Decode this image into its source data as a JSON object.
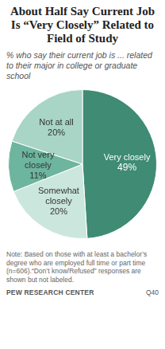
{
  "chart_data": {
    "type": "pie",
    "title": "About Half Say Current Job Is “Very Closely” Related to Field of Study",
    "subtitle": "% who say their current job is ... related to their major in college or graduate school",
    "categories": [
      "Very closely",
      "Somewhat closely",
      "Not very closely",
      "Not at all"
    ],
    "values": [
      49,
      20,
      11,
      20
    ],
    "value_labels": [
      "49%",
      "20%",
      "11%",
      "20%"
    ],
    "colors": [
      "#3f8b74",
      "#cbe7dd",
      "#6db59e",
      "#a8d5c5"
    ],
    "data_labels": true,
    "annotations": [
      "Note: Based on those with at least a bachelor’s degree who are employed full time or part time (n=606).“Don’t know/Refused” responses are shown but not labeled.",
      "PEW RESEARCH CENTER",
      "Q40"
    ]
  }
}
